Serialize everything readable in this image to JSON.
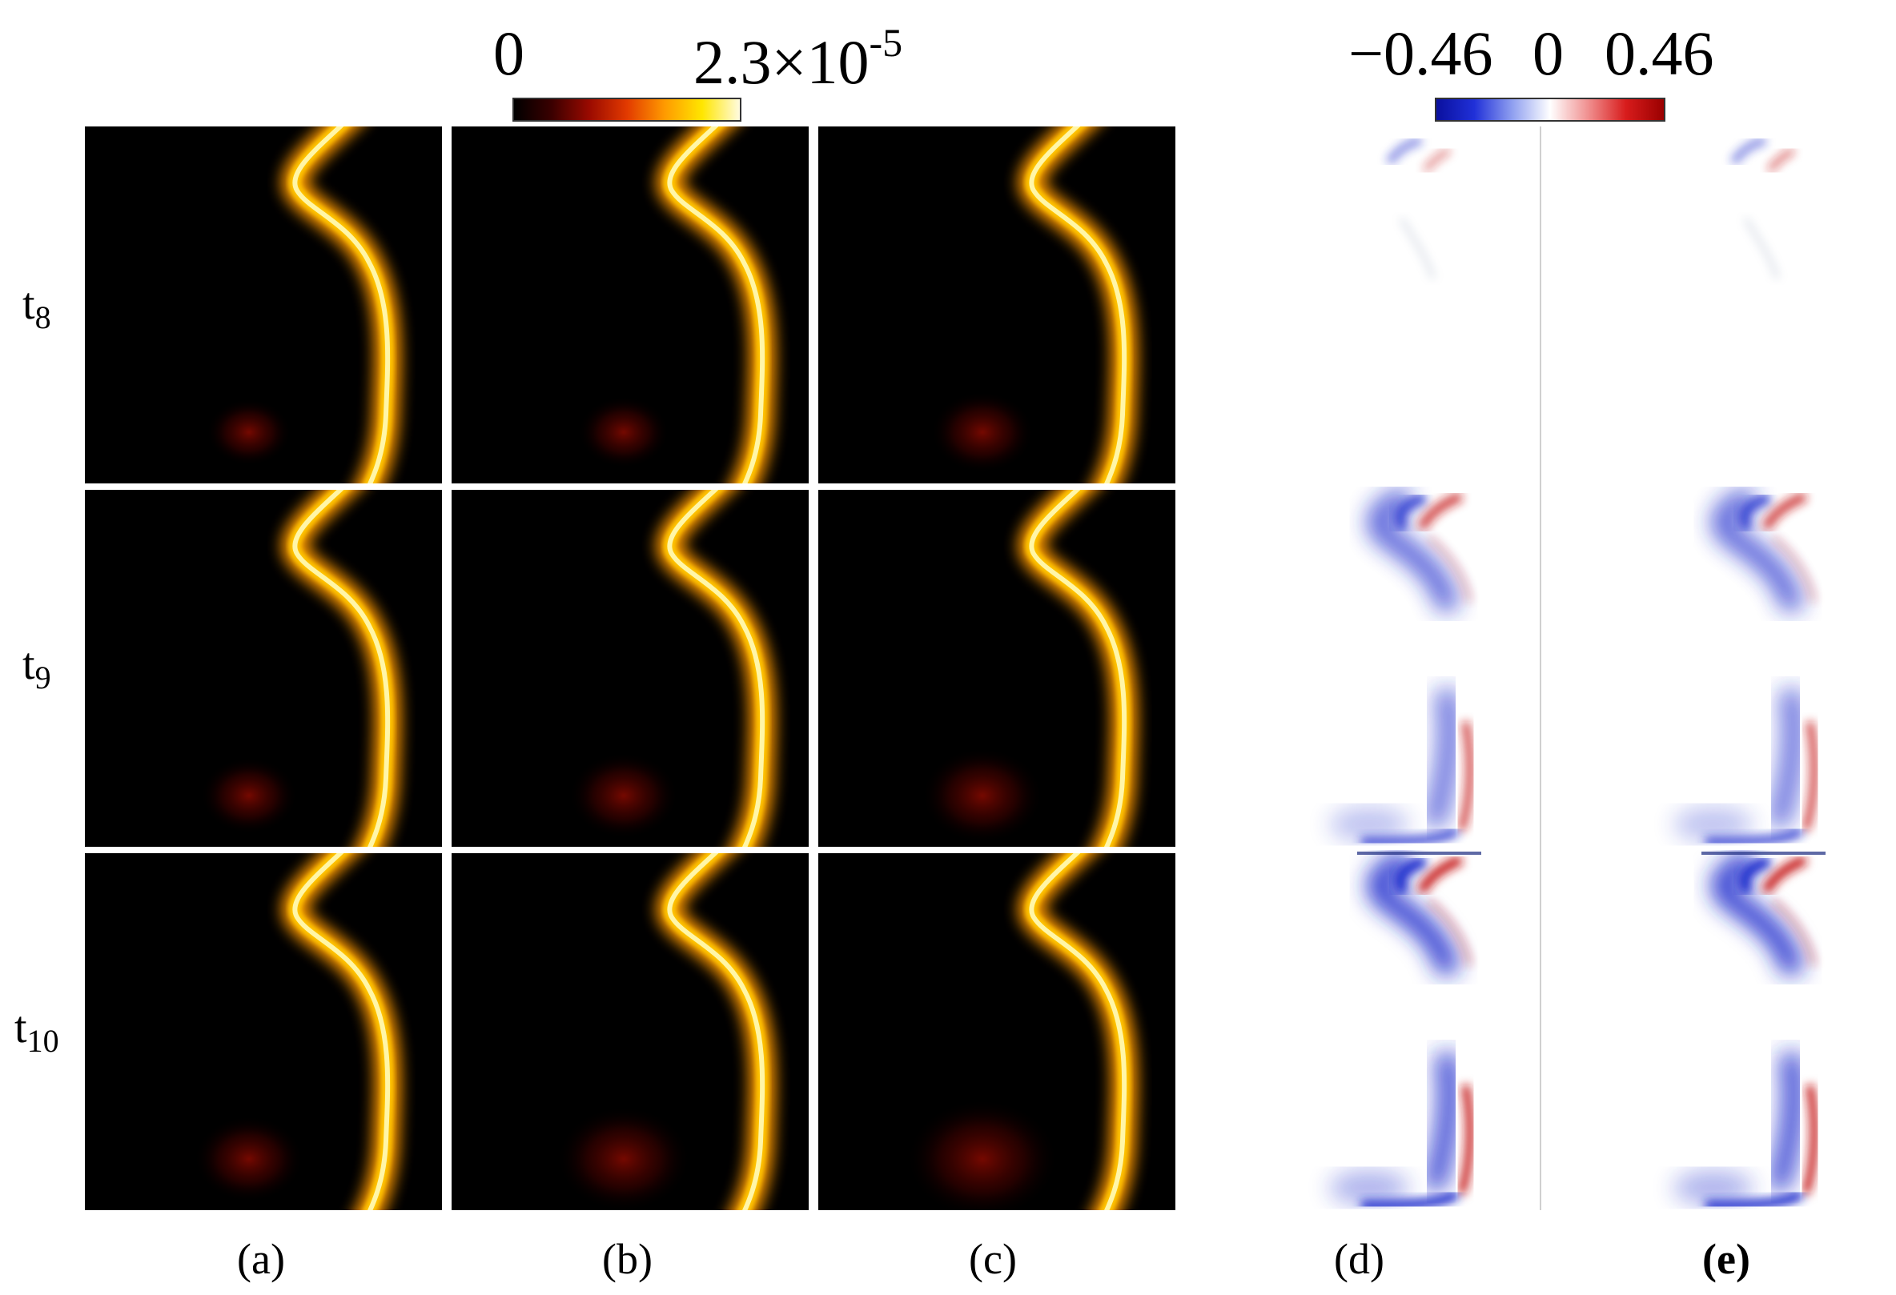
{
  "colorbar_intensity": {
    "min_label": "0",
    "max_label_mantissa": "2.3×10",
    "max_label_exponent": "-5",
    "gradient": [
      "#000000",
      "#3a0000",
      "#9a0a00",
      "#e23a00",
      "#ff9a00",
      "#ffe600",
      "#fffbe0"
    ]
  },
  "colorbar_difference": {
    "min_label": "−0.46",
    "mid_label": "0",
    "max_label": "0.46",
    "gradient": [
      "#0a109e",
      "#2030d8",
      "#8f9ff0",
      "#ffffff",
      "#f09090",
      "#d81c1c",
      "#9a0000"
    ]
  },
  "row_labels": [
    {
      "base": "t",
      "sub": "8"
    },
    {
      "base": "t",
      "sub": "9"
    },
    {
      "base": "t",
      "sub": "10"
    }
  ],
  "column_labels": [
    "(a)",
    "(b)",
    "(c)",
    "(d)",
    "(e)"
  ],
  "colors": {
    "panel_background": "#000000",
    "front_core": "#fff6a8",
    "front_glow": "#ff9a00",
    "positive": "#c41414",
    "negative": "#1a2ccc",
    "separator": "#d0d0d0"
  }
}
